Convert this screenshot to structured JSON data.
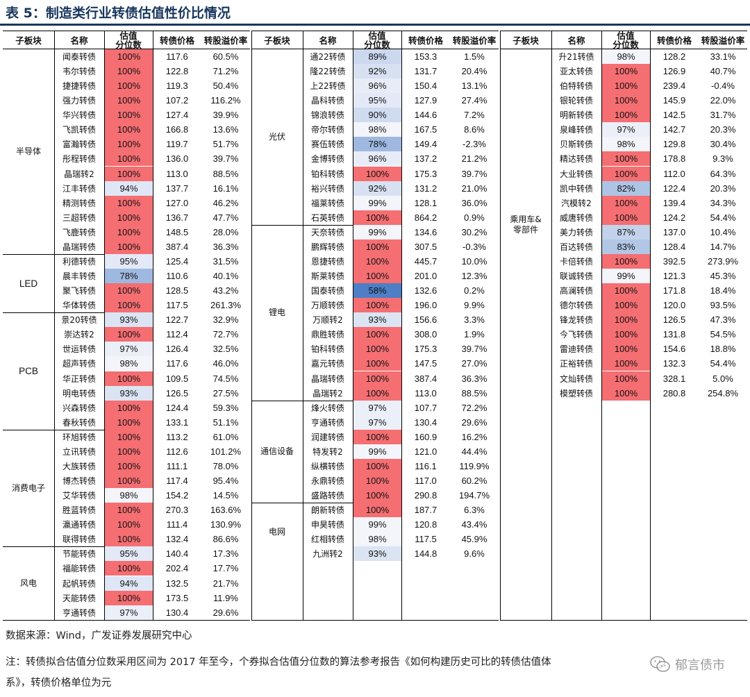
{
  "title": "表 5：制造类行业转债估值性价比情况",
  "headers": {
    "sector": "子板块",
    "name": "名称",
    "pct": "估值\n分位数",
    "price": "转债价格",
    "premium": "转股溢价率"
  },
  "colors": {
    "full": "#f46e72",
    "title": "#17365d"
  },
  "panels": [
    {
      "groups": [
        {
          "label": "半导体",
          "rows": [
            [
              "闻泰转债",
              "100%",
              "117.6",
              "60.5%"
            ],
            [
              "韦尔转债",
              "100%",
              "122.8",
              "71.2%"
            ],
            [
              "捷捷转债",
              "100%",
              "119.3",
              "50.4%"
            ],
            [
              "强力转债",
              "100%",
              "107.2",
              "116.2%"
            ],
            [
              "华兴转债",
              "100%",
              "127.4",
              "39.9%"
            ],
            [
              "飞凯转债",
              "100%",
              "166.8",
              "13.6%"
            ],
            [
              "富瀚转债",
              "100%",
              "119.7",
              "51.7%"
            ],
            [
              "彤程转债",
              "100%",
              "136.0",
              "39.7%"
            ],
            [
              "晶瑞转2",
              "100%",
              "113.0",
              "88.5%"
            ],
            [
              "江丰转债",
              "94%",
              "137.7",
              "16.1%"
            ],
            [
              "精测转债",
              "100%",
              "127.0",
              "46.2%"
            ],
            [
              "三超转债",
              "100%",
              "136.7",
              "47.7%"
            ],
            [
              "飞鹿转债",
              "100%",
              "148.5",
              "28.0%"
            ],
            [
              "晶瑞转债",
              "100%",
              "387.4",
              "36.3%"
            ]
          ]
        },
        {
          "label": "LED",
          "rows": [
            [
              "利德转债",
              "95%",
              "125.4",
              "31.5%"
            ],
            [
              "晨丰转债",
              "78%",
              "110.6",
              "40.1%"
            ],
            [
              "聚飞转债",
              "100%",
              "128.5",
              "43.2%"
            ],
            [
              "华体转债",
              "100%",
              "117.5",
              "261.3%"
            ]
          ]
        },
        {
          "label": "PCB",
          "rows": [
            [
              "景20转债",
              "93%",
              "122.7",
              "32.9%"
            ],
            [
              "崇达转2",
              "100%",
              "112.4",
              "72.7%"
            ],
            [
              "世运转债",
              "97%",
              "126.4",
              "32.5%"
            ],
            [
              "超声转债",
              "98%",
              "117.6",
              "46.0%"
            ],
            [
              "华正转债",
              "100%",
              "109.5",
              "74.5%"
            ],
            [
              "明电转债",
              "93%",
              "126.5",
              "27.5%"
            ],
            [
              "兴森转债",
              "100%",
              "124.4",
              "59.3%"
            ],
            [
              "春秋转债",
              "100%",
              "133.1",
              "51.1%"
            ]
          ]
        },
        {
          "label": "消费电子",
          "rows": [
            [
              "环旭转债",
              "100%",
              "113.2",
              "61.0%"
            ],
            [
              "立讯转债",
              "100%",
              "112.6",
              "101.2%"
            ],
            [
              "大族转债",
              "100%",
              "111.1",
              "78.0%"
            ],
            [
              "博杰转债",
              "100%",
              "117.4",
              "95.4%"
            ],
            [
              "艾华转债",
              "98%",
              "154.2",
              "14.5%"
            ],
            [
              "胜蓝转债",
              "100%",
              "270.3",
              "163.6%"
            ],
            [
              "瀛通转债",
              "100%",
              "111.4",
              "130.9%"
            ],
            [
              "联得转债",
              "100%",
              "132.4",
              "86.6%"
            ]
          ]
        },
        {
          "label": "风电",
          "rows": [
            [
              "节能转债",
              "95%",
              "140.4",
              "17.3%"
            ],
            [
              "福能转债",
              "100%",
              "202.4",
              "17.7%"
            ],
            [
              "起帆转债",
              "94%",
              "132.5",
              "21.7%"
            ],
            [
              "天能转债",
              "100%",
              "173.5",
              "11.9%"
            ],
            [
              "亨通转债",
              "97%",
              "130.4",
              "29.6%"
            ]
          ]
        }
      ]
    },
    {
      "groups": [
        {
          "label": "光伏",
          "rows": [
            [
              "通22转债",
              "89%",
              "153.3",
              "1.5%"
            ],
            [
              "隆22转债",
              "92%",
              "131.7",
              "20.4%"
            ],
            [
              "上22转债",
              "96%",
              "150.4",
              "13.1%"
            ],
            [
              "晶科转债",
              "95%",
              "127.9",
              "27.4%"
            ],
            [
              "锦浪转债",
              "90%",
              "144.6",
              "7.2%"
            ],
            [
              "帝尔转债",
              "98%",
              "167.5",
              "8.6%"
            ],
            [
              "赛伍转债",
              "78%",
              "149.4",
              "-2.3%"
            ],
            [
              "金博转债",
              "96%",
              "137.2",
              "21.2%"
            ],
            [
              "铂科转债",
              "100%",
              "175.3",
              "39.7%"
            ],
            [
              "裕兴转债",
              "92%",
              "131.2",
              "21.0%"
            ],
            [
              "福莱转债",
              "99%",
              "128.1",
              "36.0%"
            ],
            [
              "石英转债",
              "100%",
              "864.2",
              "0.9%"
            ]
          ]
        },
        {
          "label": "锂电",
          "rows": [
            [
              "天奈转债",
              "99%",
              "134.6",
              "30.2%"
            ],
            [
              "鹏辉转债",
              "100%",
              "307.5",
              "-0.3%"
            ],
            [
              "恩捷转债",
              "100%",
              "445.7",
              "10.0%"
            ],
            [
              "斯莱转债",
              "100%",
              "201.0",
              "12.3%"
            ],
            [
              "国泰转债",
              "58%",
              "132.6",
              "0.2%"
            ],
            [
              "万顺转债",
              "100%",
              "196.0",
              "9.9%"
            ],
            [
              "万顺转2",
              "93%",
              "156.6",
              "3.3%"
            ],
            [
              "鼎胜转债",
              "100%",
              "308.0",
              "1.9%"
            ],
            [
              "铂科转债",
              "100%",
              "175.3",
              "39.7%"
            ],
            [
              "嘉元转债",
              "100%",
              "147.5",
              "27.0%"
            ],
            [
              "晶瑞转债",
              "100%",
              "387.4",
              "36.3%"
            ],
            [
              "晶瑞转2",
              "100%",
              "113.0",
              "88.5%"
            ]
          ]
        },
        {
          "label": "通信设备",
          "rows": [
            [
              "烽火转债",
              "97%",
              "107.7",
              "72.2%"
            ],
            [
              "亨通转债",
              "97%",
              "130.4",
              "29.6%"
            ],
            [
              "润建转债",
              "100%",
              "160.9",
              "16.2%"
            ],
            [
              "特发转2",
              "99%",
              "121.0",
              "44.4%"
            ],
            [
              "纵横转债",
              "100%",
              "116.1",
              "119.9%"
            ],
            [
              "永鼎转债",
              "100%",
              "117.0",
              "60.2%"
            ],
            [
              "盛路转债",
              "100%",
              "290.8",
              "194.7%"
            ]
          ]
        },
        {
          "label": "电网",
          "rows": [
            [
              "朗新转债",
              "100%",
              "187.7",
              "6.3%"
            ],
            [
              "申昊转债",
              "99%",
              "120.8",
              "43.4%"
            ],
            [
              "红相转债",
              "98%",
              "117.5",
              "45.9%"
            ],
            [
              "九洲转2",
              "93%",
              "144.8",
              "9.6%"
            ]
          ]
        }
      ]
    },
    {
      "groups": [
        {
          "label": "乘用车&\n零部件",
          "rows": [
            [
              "升21转债",
              "98%",
              "128.2",
              "33.1%"
            ],
            [
              "亚太转债",
              "100%",
              "126.9",
              "40.7%"
            ],
            [
              "伯特转债",
              "100%",
              "239.4",
              "-0.4%"
            ],
            [
              "银轮转债",
              "100%",
              "145.9",
              "22.0%"
            ],
            [
              "明新转债",
              "100%",
              "142.5",
              "31.7%"
            ],
            [
              "泉峰转债",
              "97%",
              "142.7",
              "20.3%"
            ],
            [
              "贝斯转债",
              "98%",
              "129.8",
              "30.4%"
            ],
            [
              "精达转债",
              "100%",
              "178.8",
              "9.3%"
            ],
            [
              "大业转债",
              "100%",
              "112.0",
              "64.3%"
            ],
            [
              "凯中转债",
              "82%",
              "122.4",
              "20.3%"
            ],
            [
              "汽模转2",
              "100%",
              "139.4",
              "34.3%"
            ],
            [
              "威唐转债",
              "100%",
              "124.2",
              "54.4%"
            ],
            [
              "美力转债",
              "87%",
              "137.0",
              "10.4%"
            ],
            [
              "百达转债",
              "83%",
              "128.4",
              "14.7%"
            ],
            [
              "卡倍转债",
              "100%",
              "392.5",
              "273.9%"
            ],
            [
              "联诚转债",
              "99%",
              "121.3",
              "45.3%"
            ],
            [
              "高澜转债",
              "100%",
              "171.8",
              "18.4%"
            ],
            [
              "德尔转债",
              "100%",
              "120.0",
              "93.5%"
            ],
            [
              "锋龙转债",
              "100%",
              "126.5",
              "47.3%"
            ],
            [
              "今飞转债",
              "100%",
              "131.8",
              "54.5%"
            ],
            [
              "雷迪转债",
              "100%",
              "154.6",
              "18.8%"
            ],
            [
              "正裕转债",
              "100%",
              "132.3",
              "54.4%"
            ],
            [
              "文灿转债",
              "100%",
              "328.1",
              "5.0%"
            ],
            [
              "模塑转债",
              "100%",
              "280.8",
              "254.8%"
            ]
          ]
        }
      ]
    }
  ],
  "footer": {
    "source": "数据来源：Wind，广发证券发展研究中心",
    "note1": "注：转债拟合估值分位数采用区间为 2017 年至今，个券拟合估值分位数的算法参考报告《如何构建历史可比的转债估值体",
    "note2": "系》，转债价格单位为元"
  },
  "watermark": "郁言债市"
}
